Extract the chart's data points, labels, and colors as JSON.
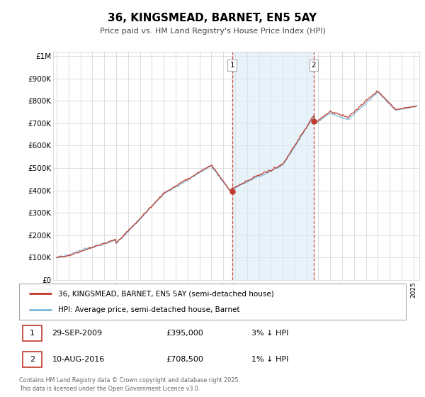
{
  "title": "36, KINGSMEAD, BARNET, EN5 5AY",
  "subtitle": "Price paid vs. HM Land Registry's House Price Index (HPI)",
  "yticks": [
    0,
    100000,
    200000,
    300000,
    400000,
    500000,
    600000,
    700000,
    800000,
    900000,
    1000000
  ],
  "ytick_labels": [
    "£0",
    "£100K",
    "£200K",
    "£300K",
    "£400K",
    "£500K",
    "£600K",
    "£700K",
    "£800K",
    "£900K",
    "£1M"
  ],
  "hpi_color": "#7ab8d9",
  "price_color": "#c0392b",
  "sale1_date": 2009.75,
  "sale1_price": 395000,
  "sale2_date": 2016.6,
  "sale2_price": 708500,
  "legend_label_red": "36, KINGSMEAD, BARNET, EN5 5AY (semi-detached house)",
  "legend_label_blue": "HPI: Average price, semi-detached house, Barnet",
  "annotation1_date": "29-SEP-2009",
  "annotation1_price": "£395,000",
  "annotation1_hpi": "3% ↓ HPI",
  "annotation2_date": "10-AUG-2016",
  "annotation2_price": "£708,500",
  "annotation2_hpi": "1% ↓ HPI",
  "footer": "Contains HM Land Registry data © Crown copyright and database right 2025.\nThis data is licensed under the Open Government Licence v3.0.",
  "bg_color": "#ffffff",
  "grid_color": "#d0d0d0",
  "shade_color": "#daeaf5"
}
